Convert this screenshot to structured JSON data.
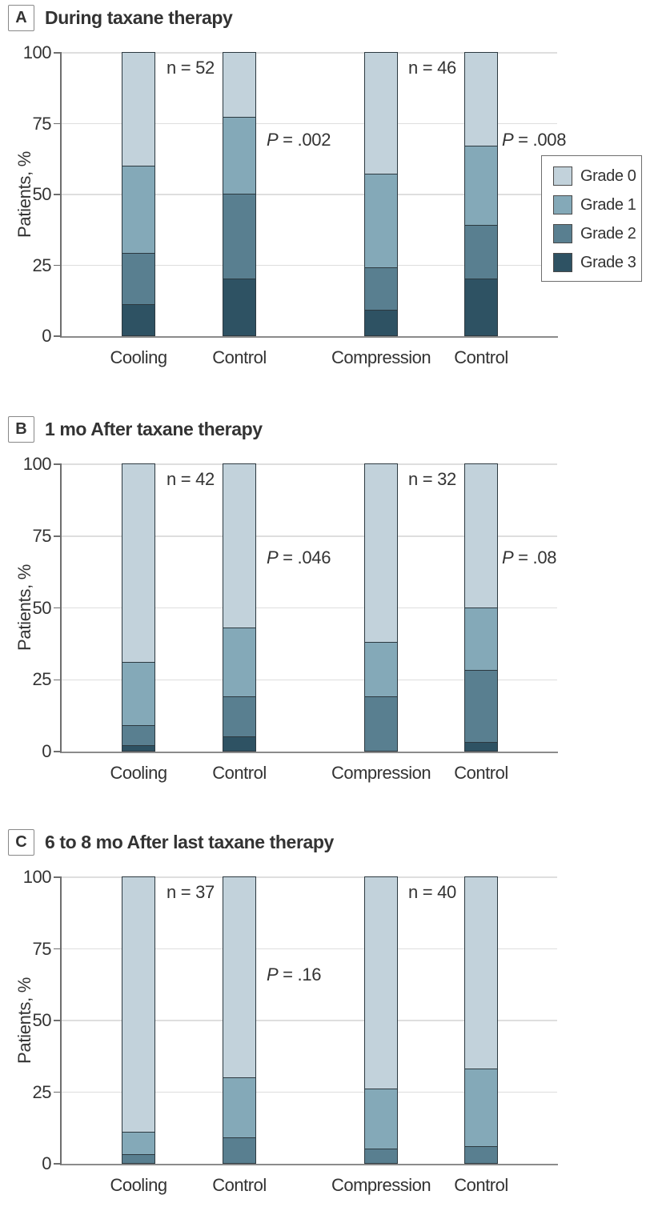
{
  "figure": {
    "y_axis_label": "Patients, %",
    "y_ticks": [
      "100",
      "75",
      "50",
      "25",
      "0"
    ],
    "x_categories": [
      "Cooling",
      "Control",
      "Compression",
      "Control"
    ],
    "legend": {
      "items": [
        {
          "label": "Grade 0",
          "color": "#c2d2db"
        },
        {
          "label": "Grade 1",
          "color": "#84a9b8"
        },
        {
          "label": "Grade 2",
          "color": "#597f90"
        },
        {
          "label": "Grade 3",
          "color": "#2e5263"
        }
      ]
    },
    "colors": {
      "grade0": "#c2d2db",
      "grade1": "#84a9b8",
      "grade2": "#597f90",
      "grade3": "#2e5263",
      "gridline": "#dedede",
      "axis": "#6e6e6e",
      "text": "#333333",
      "segment_border": "#2c3940"
    }
  },
  "chart_data": [
    {
      "type": "bar",
      "stacked": true,
      "panel_letter": "A",
      "title": "During taxane therapy",
      "ylabel": "Patients, %",
      "ylim": [
        0,
        100
      ],
      "grid": true,
      "legend_position": "right",
      "categories": [
        "Cooling",
        "Control",
        "Compression",
        "Control"
      ],
      "series": [
        {
          "name": "Grade 3",
          "color": "#2e5263",
          "values": [
            11,
            20,
            9,
            20
          ]
        },
        {
          "name": "Grade 2",
          "color": "#597f90",
          "values": [
            18,
            30,
            15,
            19
          ]
        },
        {
          "name": "Grade 1",
          "color": "#84a9b8",
          "values": [
            31,
            27,
            33,
            28
          ]
        },
        {
          "name": "Grade 0",
          "color": "#c2d2db",
          "values": [
            40,
            23,
            43,
            33
          ]
        }
      ],
      "annotations": {
        "n_labels": [
          {
            "text": "n = 52"
          },
          {
            "text": "n = 46"
          }
        ],
        "p_labels": [
          {
            "symbol": "P",
            "rest": " = .002"
          },
          {
            "symbol": "P",
            "rest": " = .008"
          }
        ]
      }
    },
    {
      "type": "bar",
      "stacked": true,
      "panel_letter": "B",
      "title": "1 mo After taxane therapy",
      "ylabel": "Patients, %",
      "ylim": [
        0,
        100
      ],
      "grid": true,
      "categories": [
        "Cooling",
        "Control",
        "Compression",
        "Control"
      ],
      "series": [
        {
          "name": "Grade 3",
          "color": "#2e5263",
          "values": [
            2,
            5,
            0,
            3
          ]
        },
        {
          "name": "Grade 2",
          "color": "#597f90",
          "values": [
            7,
            14,
            19,
            25
          ]
        },
        {
          "name": "Grade 1",
          "color": "#84a9b8",
          "values": [
            22,
            24,
            19,
            22
          ]
        },
        {
          "name": "Grade 0",
          "color": "#c2d2db",
          "values": [
            69,
            57,
            62,
            50
          ]
        }
      ],
      "annotations": {
        "n_labels": [
          {
            "text": "n = 42"
          },
          {
            "text": "n = 32"
          }
        ],
        "p_labels": [
          {
            "symbol": "P",
            "rest": " = .046"
          },
          {
            "symbol": "P",
            "rest": " = .08"
          }
        ]
      }
    },
    {
      "type": "bar",
      "stacked": true,
      "panel_letter": "C",
      "title": "6 to 8 mo After last taxane therapy",
      "ylabel": "Patients, %",
      "ylim": [
        0,
        100
      ],
      "grid": true,
      "categories": [
        "Cooling",
        "Control",
        "Compression",
        "Control"
      ],
      "series": [
        {
          "name": "Grade 3",
          "color": "#2e5263",
          "values": [
            0,
            0,
            0,
            0
          ]
        },
        {
          "name": "Grade 2",
          "color": "#597f90",
          "values": [
            3,
            9,
            5,
            6
          ]
        },
        {
          "name": "Grade 1",
          "color": "#84a9b8",
          "values": [
            8,
            21,
            21,
            27
          ]
        },
        {
          "name": "Grade 0",
          "color": "#c2d2db",
          "values": [
            89,
            70,
            74,
            67
          ]
        }
      ],
      "annotations": {
        "n_labels": [
          {
            "text": "n = 37"
          },
          {
            "text": "n = 40"
          }
        ],
        "p_labels": [
          {
            "symbol": "P",
            "rest": " = .16"
          }
        ]
      }
    }
  ]
}
